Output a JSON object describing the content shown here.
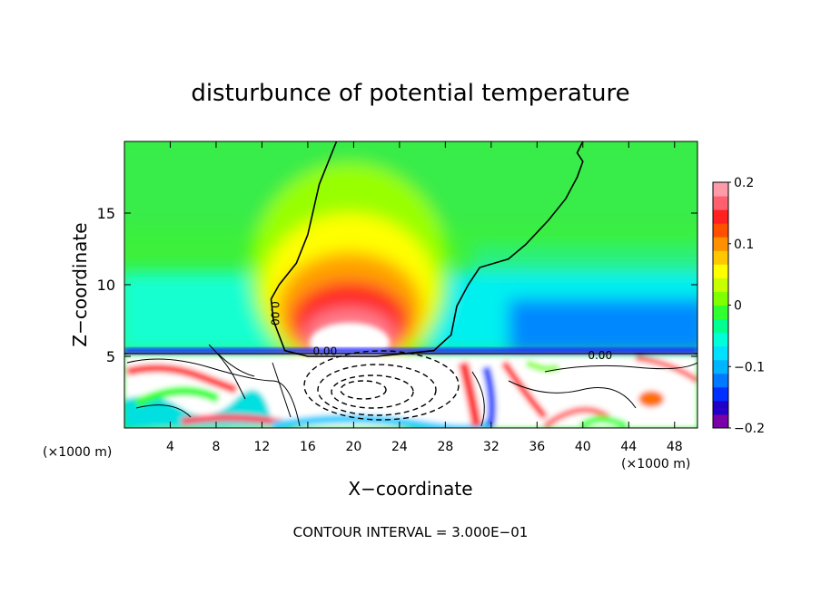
{
  "chart_data": {
    "type": "heatmap",
    "title": "disturbunce of potential temperature",
    "xlabel": "X−coordinate",
    "ylabel": "Z−coordinate",
    "x_unit_left": "(×1000 m)",
    "x_unit_right": "(×1000 m)",
    "xlim": [
      0,
      50
    ],
    "ylim": [
      0,
      20
    ],
    "x_ticks": [
      4,
      8,
      12,
      16,
      20,
      24,
      28,
      32,
      36,
      40,
      44,
      48
    ],
    "x_tick_labels": [
      "4",
      "8",
      "12",
      "16",
      "20",
      "24",
      "28",
      "32",
      "36",
      "40",
      "44",
      "48"
    ],
    "y_ticks": [
      5,
      10,
      15
    ],
    "y_tick_labels": [
      "5",
      "10",
      "15"
    ],
    "colorbar": {
      "range": [
        -0.2,
        0.2
      ],
      "tick_values": [
        0.2,
        0.1,
        0,
        -0.1,
        -0.2
      ],
      "tick_labels": [
        "0.2",
        "0.1",
        "0",
        "−0.1",
        "−0.2"
      ],
      "colors": [
        "#7a00a8",
        "#2200c8",
        "#0030ff",
        "#0078ff",
        "#00b4ff",
        "#00e0ff",
        "#00ffd8",
        "#00ff90",
        "#30ff30",
        "#80ff00",
        "#c8ff00",
        "#ffff00",
        "#ffc800",
        "#ff9000",
        "#ff5000",
        "#ff2020",
        "#ff6070",
        "#ff9aa8"
      ]
    },
    "contour_labels": [
      {
        "text": "0.00",
        "x": 12.8,
        "z": 8.0
      },
      {
        "text": "0.00",
        "x": 17.5,
        "z": 5.1
      },
      {
        "text": "0.00",
        "x": 41.5,
        "z": 4.8
      }
    ],
    "zero_contour": [
      [
        18.5,
        20
      ],
      [
        17,
        17
      ],
      [
        16,
        13.5
      ],
      [
        15,
        11.5
      ],
      [
        13.5,
        10
      ],
      [
        12.8,
        9
      ],
      [
        13,
        7.5
      ],
      [
        14,
        5.4
      ],
      [
        16,
        5.0
      ],
      [
        22,
        5.0
      ],
      [
        27,
        5.4
      ],
      [
        28.5,
        6.5
      ],
      [
        29,
        8.5
      ],
      [
        30,
        10
      ],
      [
        31,
        11.2
      ],
      [
        33.5,
        11.8
      ],
      [
        35,
        12.8
      ],
      [
        37,
        14.5
      ],
      [
        38.5,
        16
      ],
      [
        39.5,
        17.5
      ],
      [
        40,
        18.6
      ],
      [
        39.5,
        19.2
      ],
      [
        40,
        20
      ]
    ],
    "footer": "CONTOUR INTERVAL = 3.000E−01"
  }
}
